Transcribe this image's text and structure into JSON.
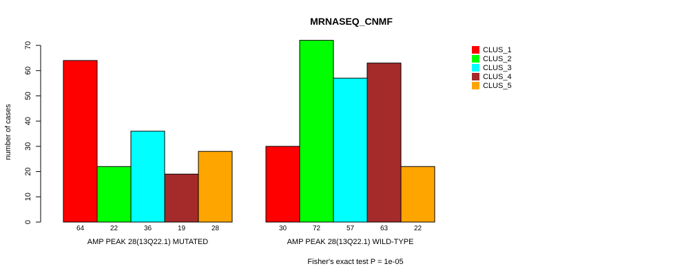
{
  "chart_data": {
    "type": "bar",
    "title": "MRNASEQ_CNMF",
    "ylabel": "number of cases",
    "xlabel": "",
    "ylim": [
      0,
      70
    ],
    "yticks": [
      0,
      10,
      20,
      30,
      40,
      50,
      60,
      70
    ],
    "grid": false,
    "legend_position": "top-right",
    "groups": [
      "AMP PEAK 28(13Q22.1) MUTATED",
      "AMP PEAK 28(13Q22.1) WILD-TYPE"
    ],
    "series": [
      {
        "name": "CLUS_1",
        "color": "#ff0000",
        "values": [
          64,
          30
        ]
      },
      {
        "name": "CLUS_2",
        "color": "#00ff00",
        "values": [
          22,
          72
        ]
      },
      {
        "name": "CLUS_3",
        "color": "#00ffff",
        "values": [
          36,
          57
        ]
      },
      {
        "name": "CLUS_4",
        "color": "#a52a2a",
        "values": [
          19,
          63
        ]
      },
      {
        "name": "CLUS_5",
        "color": "#ffa500",
        "values": [
          28,
          22
        ]
      }
    ],
    "footnote": "Fisher's exact test P = 1e-05"
  }
}
